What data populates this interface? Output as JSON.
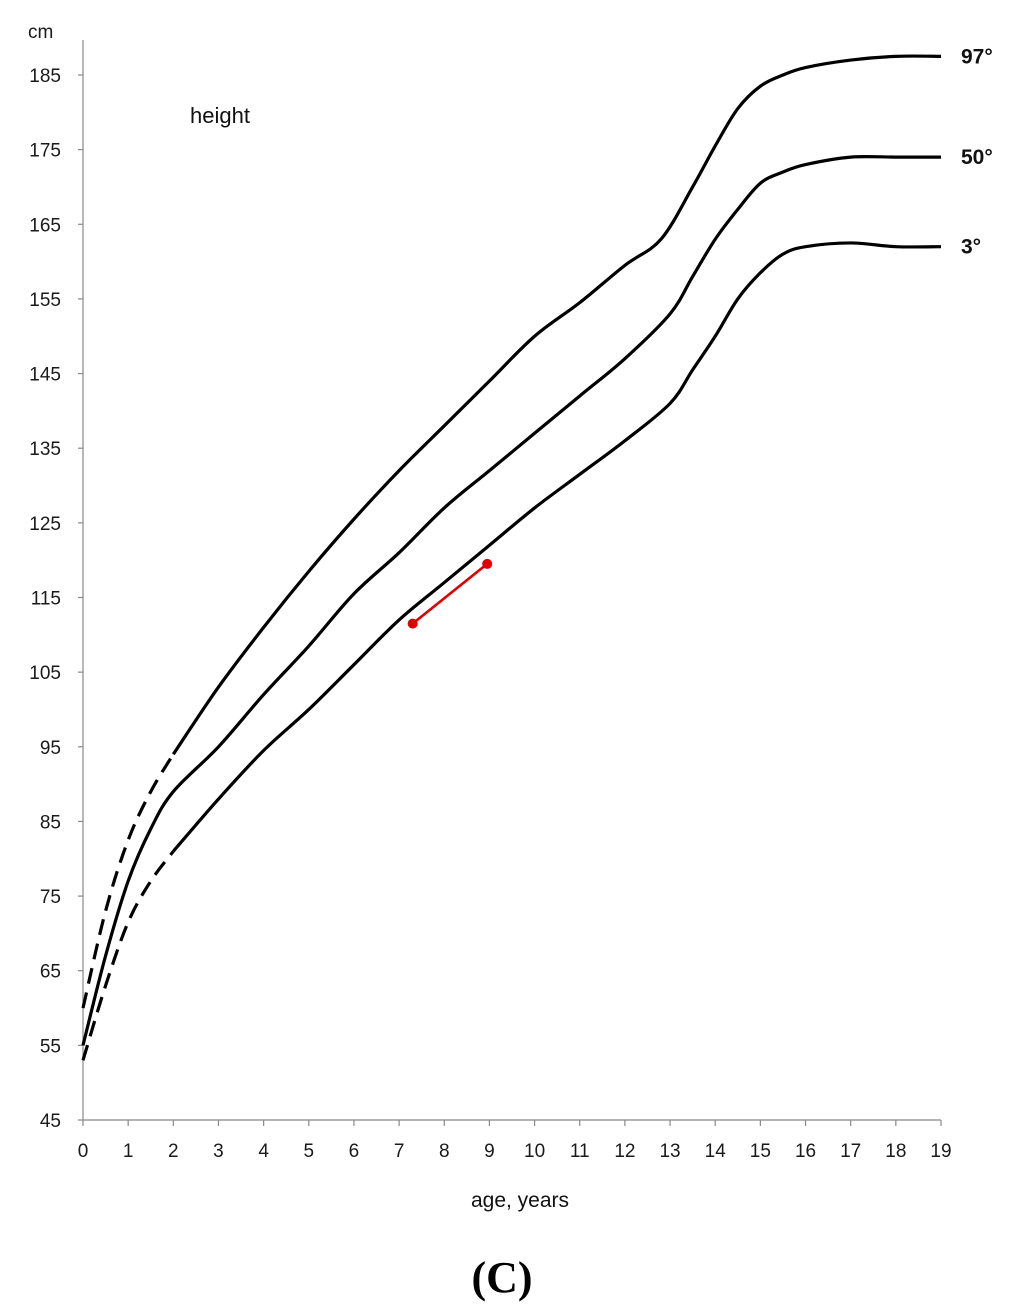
{
  "chart_data": {
    "type": "line",
    "title": "height",
    "xlabel": "age, years",
    "ylabel": "cm",
    "caption": "(C)",
    "xlim": [
      0,
      19
    ],
    "ylim": [
      45,
      190
    ],
    "x_ticks": [
      "0",
      "1",
      "2",
      "3",
      "4",
      "5",
      "6",
      "7",
      "8",
      "9",
      "10",
      "11",
      "12",
      "13",
      "14",
      "15",
      "16",
      "17",
      "18",
      "19"
    ],
    "y_ticks": [
      "45",
      "55",
      "65",
      "75",
      "85",
      "95",
      "105",
      "115",
      "125",
      "135",
      "145",
      "155",
      "165",
      "175",
      "185"
    ],
    "grid": false,
    "colors": {
      "percentile_curves": "#000000",
      "patient": "#e00000"
    },
    "series": [
      {
        "name": "97°",
        "dashed_until_x": 2,
        "x": [
          0,
          0.5,
          1,
          1.5,
          2,
          3,
          4,
          5,
          6,
          7,
          8,
          9,
          10,
          11,
          12,
          12.8,
          13.5,
          14,
          14.5,
          15,
          15.5,
          16,
          17,
          18,
          19
        ],
        "y": [
          60,
          73,
          82.5,
          89,
          94,
          103,
          111,
          118.5,
          125.5,
          132,
          138,
          144,
          150,
          154.5,
          159.5,
          163,
          170,
          175.5,
          180.5,
          183.5,
          185,
          186,
          187,
          187.5,
          187.5
        ]
      },
      {
        "name": "50°",
        "dashed_until_x": null,
        "x": [
          0,
          0.5,
          1,
          1.5,
          2,
          3,
          4,
          5,
          6,
          7,
          8,
          9,
          10,
          11,
          12,
          13,
          13.5,
          14,
          14.5,
          15,
          15.5,
          16,
          17,
          18,
          19
        ],
        "y": [
          55,
          67,
          77,
          84,
          89,
          95,
          102,
          108.5,
          115.5,
          121,
          127,
          132,
          137,
          142,
          147,
          153,
          158,
          163,
          167,
          170.5,
          172,
          173,
          174,
          174,
          174
        ]
      },
      {
        "name": "3°",
        "dashed_until_x": 2,
        "x": [
          0,
          0.5,
          1,
          1.5,
          2,
          3,
          4,
          5,
          6,
          7,
          8,
          9,
          10,
          11,
          12,
          13,
          13.5,
          14,
          14.5,
          15,
          15.5,
          16,
          17,
          18,
          19
        ],
        "y": [
          53,
          63,
          71.5,
          77,
          81,
          88,
          94.5,
          100,
          106,
          112,
          117,
          122,
          127,
          131.5,
          136,
          141,
          145.5,
          150,
          155,
          158.5,
          161,
          162,
          162.5,
          162,
          162
        ]
      }
    ],
    "patient": {
      "x": [
        7.3,
        8.95
      ],
      "y": [
        111.5,
        119.5
      ]
    }
  }
}
